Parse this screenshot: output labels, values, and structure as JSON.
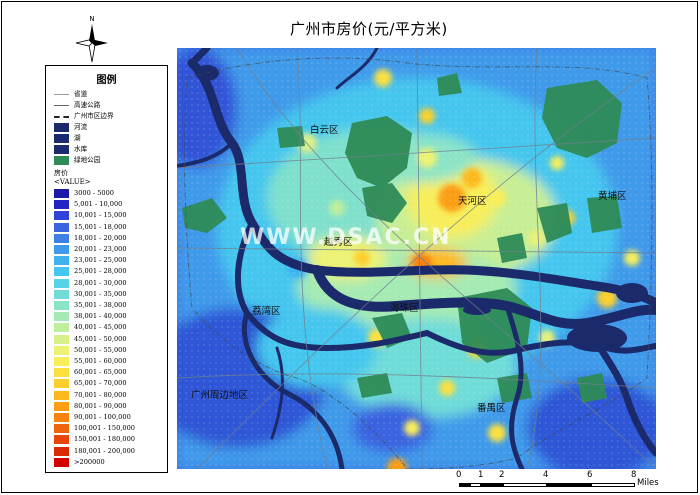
{
  "title": "广州市房价(元/平方米)",
  "north_arrow": {
    "label": "N",
    "icon": "north-arrow-icon"
  },
  "legend": {
    "title": "图例",
    "line_items": [
      {
        "label": "省道",
        "style": "thin-gray-line"
      },
      {
        "label": "高速公路",
        "style": "gray-line"
      },
      {
        "label": "广州市区边界",
        "style": "dash-dot-line"
      }
    ],
    "area_items": [
      {
        "label": "河流",
        "color": "#1b2a6b"
      },
      {
        "label": "湖",
        "color": "#1b2a6b"
      },
      {
        "label": "水库",
        "color": "#1b2a6b"
      },
      {
        "label": "绿地公园",
        "color": "#2e8b57"
      }
    ],
    "price_header": "房价",
    "price_field": "<VALUE>",
    "classes": [
      {
        "label": "3000 - 5000",
        "color": "#1a1aa6"
      },
      {
        "label": "5,001 - 10,000",
        "color": "#2424c4"
      },
      {
        "label": "10,001 - 15,000",
        "color": "#2f44d6"
      },
      {
        "label": "15,001 - 18,000",
        "color": "#3b64e0"
      },
      {
        "label": "18,001 - 20,000",
        "color": "#3f7fe6"
      },
      {
        "label": "20,001 - 23,000",
        "color": "#3f9aea"
      },
      {
        "label": "23,001 - 25,000",
        "color": "#3fb2ee"
      },
      {
        "label": "25,001 - 28,000",
        "color": "#44c6ee"
      },
      {
        "label": "28,001 - 30,000",
        "color": "#57d2e6"
      },
      {
        "label": "30,001 - 35,000",
        "color": "#6fdcd8"
      },
      {
        "label": "35,001 - 38,000",
        "color": "#8be4c6"
      },
      {
        "label": "38,001 - 40,000",
        "color": "#a5eab2"
      },
      {
        "label": "40,001 - 45,000",
        "color": "#bfee9c"
      },
      {
        "label": "45,001 - 50,000",
        "color": "#d7f088"
      },
      {
        "label": "50,001 - 55,000",
        "color": "#ecf274"
      },
      {
        "label": "55,001 - 60,000",
        "color": "#f8ee5a"
      },
      {
        "label": "60,001 - 65,000",
        "color": "#fbe040"
      },
      {
        "label": "65,001 - 70,000",
        "color": "#fccf2c"
      },
      {
        "label": "70,001 - 80,000",
        "color": "#fcb81c"
      },
      {
        "label": "80,001 - 90,000",
        "color": "#fb9e14"
      },
      {
        "label": "90,001 - 100,000",
        "color": "#f7820e"
      },
      {
        "label": "100,001 - 150,000",
        "color": "#f0640a"
      },
      {
        "label": "150,001 - 180,000",
        "color": "#e64608"
      },
      {
        "label": "180,001 - 200,000",
        "color": "#d92a06"
      },
      {
        "label": ">200000",
        "color": "#d40000"
      }
    ]
  },
  "districts": {
    "baiyun": "白云区",
    "tianhe": "天河区",
    "huangpu": "黄埔区",
    "yuexiu": "越秀区",
    "liwan": "荔湾区",
    "haizhu": "海珠区",
    "panyu": "番禺区",
    "periphery": "广州周边地区"
  },
  "watermark": "WWW.DSAC.CN",
  "scale": {
    "ticks": [
      "0",
      "1",
      "2",
      "4",
      "6",
      "8"
    ],
    "unit": "Miles"
  }
}
